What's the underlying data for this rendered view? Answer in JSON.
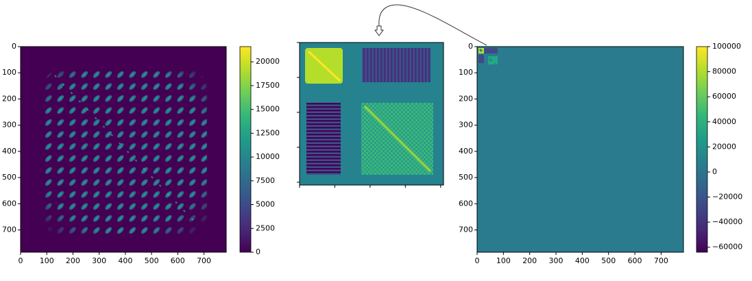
{
  "chart_data": [
    {
      "type": "heatmap",
      "cmap": "viridis",
      "xlim": [
        0,
        785
      ],
      "ylim": [
        785,
        0
      ],
      "xticks": [
        0,
        100,
        200,
        300,
        400,
        500,
        600,
        700
      ],
      "yticks": [
        0,
        100,
        200,
        300,
        400,
        500,
        600,
        700
      ],
      "clim": [
        0,
        21600
      ],
      "cticks": [
        0,
        2500,
        5000,
        7500,
        10000,
        12500,
        15000,
        17500,
        20000
      ]
    },
    {
      "type": "heatmap",
      "cmap": "viridis"
    },
    {
      "type": "heatmap",
      "cmap": "viridis",
      "xlim": [
        0,
        785
      ],
      "ylim": [
        785,
        0
      ],
      "xticks": [
        0,
        100,
        200,
        300,
        400,
        500,
        600,
        700
      ],
      "yticks": [
        0,
        100,
        200,
        300,
        400,
        500,
        600,
        700
      ],
      "clim": [
        -64000,
        100000
      ],
      "cticks": [
        {
          "value": -60000,
          "label": "−60000"
        },
        {
          "value": -40000,
          "label": "−40000"
        },
        {
          "value": -20000,
          "label": "−20000"
        },
        0,
        20000,
        40000,
        60000,
        80000,
        100000
      ]
    }
  ]
}
